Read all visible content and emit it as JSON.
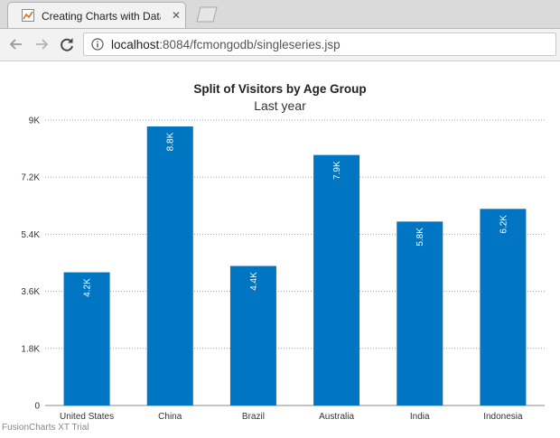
{
  "browser": {
    "tab_title": "Creating Charts with Data",
    "url_host": "localhost",
    "url_rest": ":8084/fcmongodb/singleseries.jsp"
  },
  "chart_data": {
    "type": "bar",
    "title": "Split of Visitors by Age Group",
    "subtitle": "Last year",
    "categories": [
      "United States",
      "China",
      "Brazil",
      "Australia",
      "India",
      "Indonesia"
    ],
    "values": [
      4200,
      8800,
      4400,
      7900,
      5800,
      6200
    ],
    "value_labels": [
      "4.2K",
      "8.8K",
      "4.4K",
      "7.9K",
      "5.8K",
      "6.2K"
    ],
    "y_ticks": [
      0,
      1800,
      3600,
      5400,
      7200,
      9000
    ],
    "y_tick_labels": [
      "0",
      "1.8K",
      "3.6K",
      "5.4K",
      "7.2K",
      "9K"
    ],
    "ylim": [
      0,
      9000
    ],
    "grid": true,
    "bar_color": "#0075c2",
    "watermark": "FusionCharts XT Trial"
  }
}
